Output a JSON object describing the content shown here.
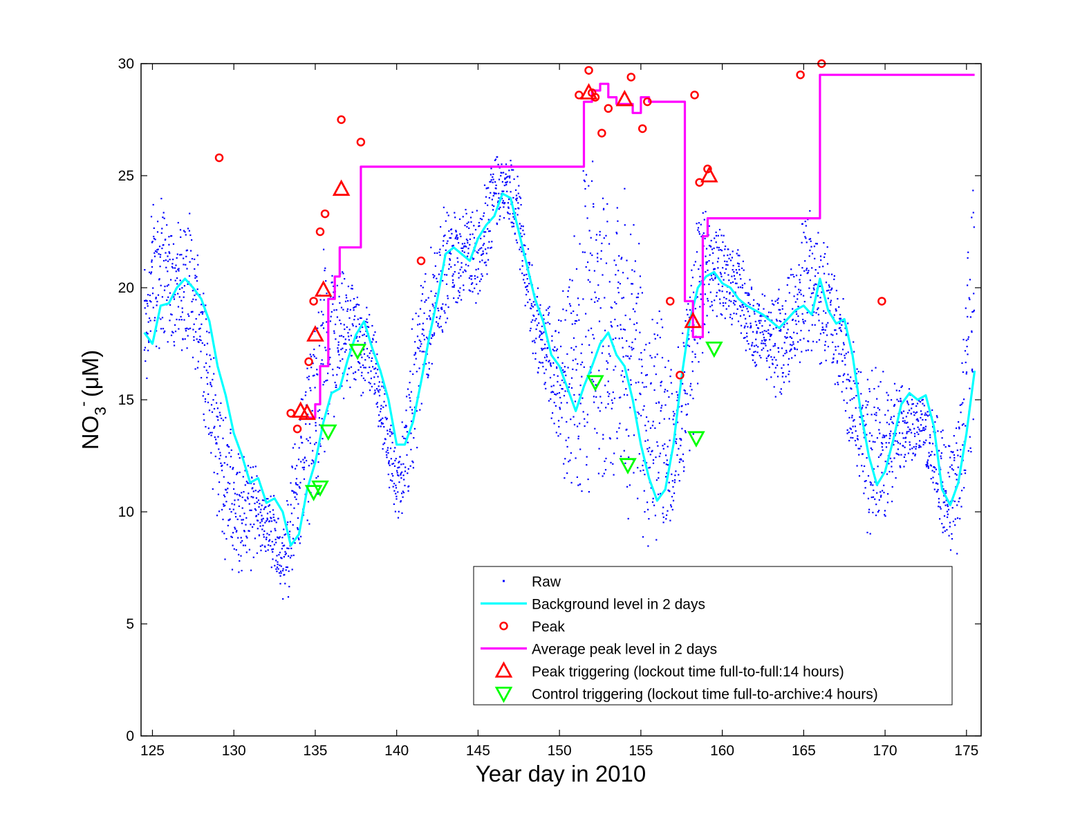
{
  "chart_data": {
    "type": "scatter",
    "xlabel": "Year day in 2010",
    "ylabel_main": "NO",
    "ylabel_sub": "3",
    "ylabel_sup": "-",
    "ylabel_unit": "(μM)",
    "xlim": [
      124.3,
      175.9
    ],
    "ylim": [
      0,
      30
    ],
    "xticks": [
      125,
      130,
      135,
      140,
      145,
      150,
      155,
      160,
      165,
      170,
      175
    ],
    "yticks": [
      0,
      5,
      10,
      15,
      20,
      25,
      30
    ],
    "grid": false,
    "legend_position": "bottom-right",
    "colors": {
      "raw": "#0000ff",
      "background": "#00ffff",
      "peak": "#ff0000",
      "average": "#ff00ff",
      "peak_trigger": "#ff0000",
      "control_trigger": "#00ff00"
    },
    "legend": [
      {
        "key": "raw",
        "label": "Raw"
      },
      {
        "key": "background",
        "label": "Background level in 2 days"
      },
      {
        "key": "peak",
        "label": "Peak"
      },
      {
        "key": "average",
        "label": "Average peak level in 2 days"
      },
      {
        "key": "peak_trigger",
        "label": "Peak triggering (lockout time full-to-full:14 hours)"
      },
      {
        "key": "control_trigger",
        "label": "Control triggering (lockout time full-to-archive:4 hours)"
      }
    ],
    "raw_envelope": {
      "x": [
        124.5,
        125,
        125.5,
        126,
        126.5,
        127,
        127.5,
        128,
        128.5,
        129,
        129.5,
        130,
        130.5,
        131,
        131.5,
        132,
        132.5,
        133,
        133.5,
        134,
        134.5,
        135,
        135.5,
        136,
        136.5,
        137,
        137.5,
        138,
        138.5,
        139,
        139.5,
        140,
        140.5,
        141,
        141.5,
        142,
        142.5,
        143,
        143.5,
        144,
        144.5,
        145,
        145.5,
        146,
        146.5,
        147,
        147.5,
        148,
        148.5,
        149,
        149.5,
        150,
        150.5,
        151,
        151.5,
        152,
        152.5,
        153,
        153.5,
        154,
        154.5,
        155,
        155.5,
        156,
        156.5,
        157,
        157.5,
        158,
        158.5,
        159,
        159.5,
        160,
        160.5,
        161,
        161.5,
        162,
        162.5,
        163,
        163.5,
        164,
        164.5,
        165,
        165.5,
        166,
        166.5,
        167,
        167.5,
        168,
        168.5,
        169,
        169.5,
        170,
        170.5,
        171,
        171.5,
        172,
        172.5,
        173,
        173.5,
        174,
        174.5,
        175,
        175.5
      ],
      "low": [
        14,
        16,
        17,
        17,
        17,
        16,
        16,
        15,
        12,
        9,
        7,
        7,
        7,
        7,
        8,
        8,
        7,
        6,
        6,
        8,
        9,
        10,
        11,
        13,
        14,
        15,
        15,
        15,
        15,
        13,
        11,
        9,
        10,
        11,
        14,
        15,
        17,
        18,
        19,
        19,
        19,
        19,
        20,
        22,
        23,
        22,
        21,
        18,
        16,
        15,
        13,
        12,
        10,
        9,
        9,
        10,
        10,
        11,
        11,
        10,
        9,
        8,
        8,
        8,
        8,
        9,
        10,
        12,
        15,
        17,
        18,
        18,
        18,
        18,
        17,
        16,
        16,
        15,
        15,
        15,
        16,
        16,
        16,
        16,
        16,
        15,
        14,
        12,
        10,
        8,
        8,
        9,
        10,
        11,
        12,
        12,
        12,
        10,
        8,
        7,
        8,
        10,
        13
      ],
      "high": [
        22,
        25,
        25,
        24,
        23,
        24,
        23,
        22,
        19,
        17,
        15,
        14,
        13,
        13,
        12,
        11,
        11,
        9,
        13,
        15,
        17,
        20,
        22,
        22,
        21,
        21,
        20,
        20,
        19,
        17,
        15,
        13,
        15,
        19,
        21,
        22,
        23,
        24,
        24,
        24,
        24,
        24,
        25,
        27,
        26,
        26,
        25,
        23,
        21,
        20,
        20,
        19,
        22,
        24,
        26,
        26,
        26,
        25,
        25,
        25,
        24,
        23,
        21,
        20,
        19,
        17,
        18,
        22,
        25,
        24,
        23,
        23,
        22,
        22,
        21,
        20,
        20,
        20,
        20,
        21,
        22,
        24,
        24,
        23,
        22,
        21,
        20,
        18,
        17,
        17,
        17,
        17,
        16,
        16,
        16,
        16,
        15,
        15,
        14,
        14,
        15,
        22,
        26
      ]
    },
    "series": [
      {
        "key": "background",
        "name": "Background level in 2 days",
        "x": [
          124.5,
          125,
          125.5,
          126,
          126.5,
          127,
          127.5,
          128,
          128.5,
          129,
          129.5,
          130,
          130.5,
          131,
          131.5,
          132,
          132.5,
          133,
          133.5,
          134,
          134.5,
          135,
          135.5,
          136,
          136.5,
          137,
          137.5,
          138,
          138.5,
          139,
          139.5,
          140,
          140.5,
          141,
          141.5,
          142,
          142.5,
          143,
          143.5,
          144,
          144.5,
          145,
          145.5,
          146,
          146.5,
          147,
          147.5,
          148,
          148.5,
          149,
          149.5,
          150,
          150.5,
          151,
          151.5,
          152,
          152.5,
          153,
          153.5,
          154,
          154.5,
          155,
          155.5,
          156,
          156.5,
          157,
          157.5,
          158,
          158.5,
          159,
          159.5,
          160,
          160.5,
          161,
          161.5,
          162,
          162.5,
          163,
          163.5,
          164,
          164.5,
          165,
          165.5,
          166,
          166.5,
          167,
          167.5,
          168,
          168.5,
          169,
          169.5,
          170,
          170.5,
          171,
          171.5,
          172,
          172.5,
          173,
          173.5,
          174,
          174.5,
          175,
          175.5
        ],
        "y": [
          18,
          17.5,
          19.2,
          19.3,
          20,
          20.4,
          20,
          19.5,
          18.5,
          16.5,
          15.2,
          13.5,
          12.5,
          11.3,
          11.5,
          10.4,
          10.6,
          10,
          8.5,
          9,
          11,
          12.2,
          14,
          15.3,
          15.5,
          16.8,
          17.9,
          18.5,
          17.3,
          16.3,
          15,
          13,
          13,
          14,
          15.8,
          17.8,
          19.5,
          21.5,
          21.8,
          21.5,
          21.2,
          22.2,
          22.8,
          23.2,
          24.2,
          24,
          22.5,
          21,
          19.5,
          18.5,
          17,
          16.5,
          15.5,
          14.5,
          15.6,
          16.5,
          17.5,
          18,
          17,
          16.5,
          15,
          13,
          11.5,
          10.5,
          11,
          13,
          16,
          18.5,
          20,
          20.5,
          20.7,
          20.2,
          20,
          19.5,
          19.2,
          19,
          18.8,
          18.5,
          18.2,
          18.6,
          19,
          19.2,
          18.8,
          20.4,
          19,
          18.4,
          18.6,
          17,
          14.5,
          12.5,
          11.2,
          11.8,
          13.2,
          14.8,
          15.3,
          15,
          15.2,
          13.8,
          11,
          10.3,
          11.3,
          13.5,
          16.3
        ]
      },
      {
        "key": "average",
        "name": "Average peak level in 2 days",
        "x": [
          134.6,
          135,
          135,
          135.3,
          135.3,
          135.8,
          135.8,
          136.2,
          136.2,
          136.5,
          136.5,
          137.8,
          137.8,
          151.5,
          151.5,
          152,
          152,
          152.5,
          152.5,
          153,
          153,
          153.5,
          153.5,
          154.5,
          154.5,
          155,
          155,
          155.5,
          155.5,
          157.7,
          157.7,
          158.2,
          158.2,
          158.8,
          158.8,
          159.1,
          159.1,
          166,
          166,
          175.5
        ],
        "y": [
          14.2,
          14.2,
          14.8,
          14.8,
          16.5,
          16.5,
          19.5,
          19.5,
          20.5,
          20.5,
          21.8,
          21.8,
          25.4,
          25.4,
          28.3,
          28.3,
          28.8,
          28.8,
          29.1,
          29.1,
          28.5,
          28.5,
          28.2,
          28.2,
          27.8,
          27.8,
          28.5,
          28.5,
          28.3,
          28.3,
          19.4,
          19.4,
          17.8,
          17.8,
          22.3,
          22.3,
          23.1,
          23.1,
          29.5,
          29.5
        ]
      }
    ],
    "peaks": {
      "x": [
        129.1,
        133.5,
        133.9,
        134.6,
        134.9,
        135.3,
        135.6,
        136.6,
        137.8,
        141.5,
        151.2,
        151.8,
        152.2,
        152.6,
        153,
        154.4,
        155.1,
        155.4,
        156.8,
        157.4,
        158.3,
        158.6,
        159.1,
        164.8,
        166.1,
        169.8,
        152
      ],
      "y": [
        25.8,
        14.4,
        13.7,
        16.7,
        19.4,
        22.5,
        23.3,
        27.5,
        26.5,
        21.2,
        28.6,
        29.7,
        28.5,
        26.9,
        28,
        29.4,
        27.1,
        28.3,
        19.4,
        16.1,
        28.6,
        24.7,
        25.3,
        29.5,
        30,
        19.4,
        28.7
      ]
    },
    "peak_triggers": {
      "x": [
        134.1,
        134.5,
        135,
        135.5,
        136.6,
        151.8,
        154,
        158.2,
        159.2
      ],
      "y": [
        14.5,
        14.4,
        17.9,
        19.9,
        24.4,
        28.7,
        28.4,
        18.5,
        25
      ]
    },
    "control_triggers": {
      "x": [
        134.9,
        135.3,
        135.8,
        137.6,
        152.2,
        154.2,
        158.4,
        159.5
      ],
      "y": [
        10.9,
        11.1,
        13.6,
        17.2,
        15.8,
        12.1,
        13.3,
        17.3
      ]
    }
  }
}
